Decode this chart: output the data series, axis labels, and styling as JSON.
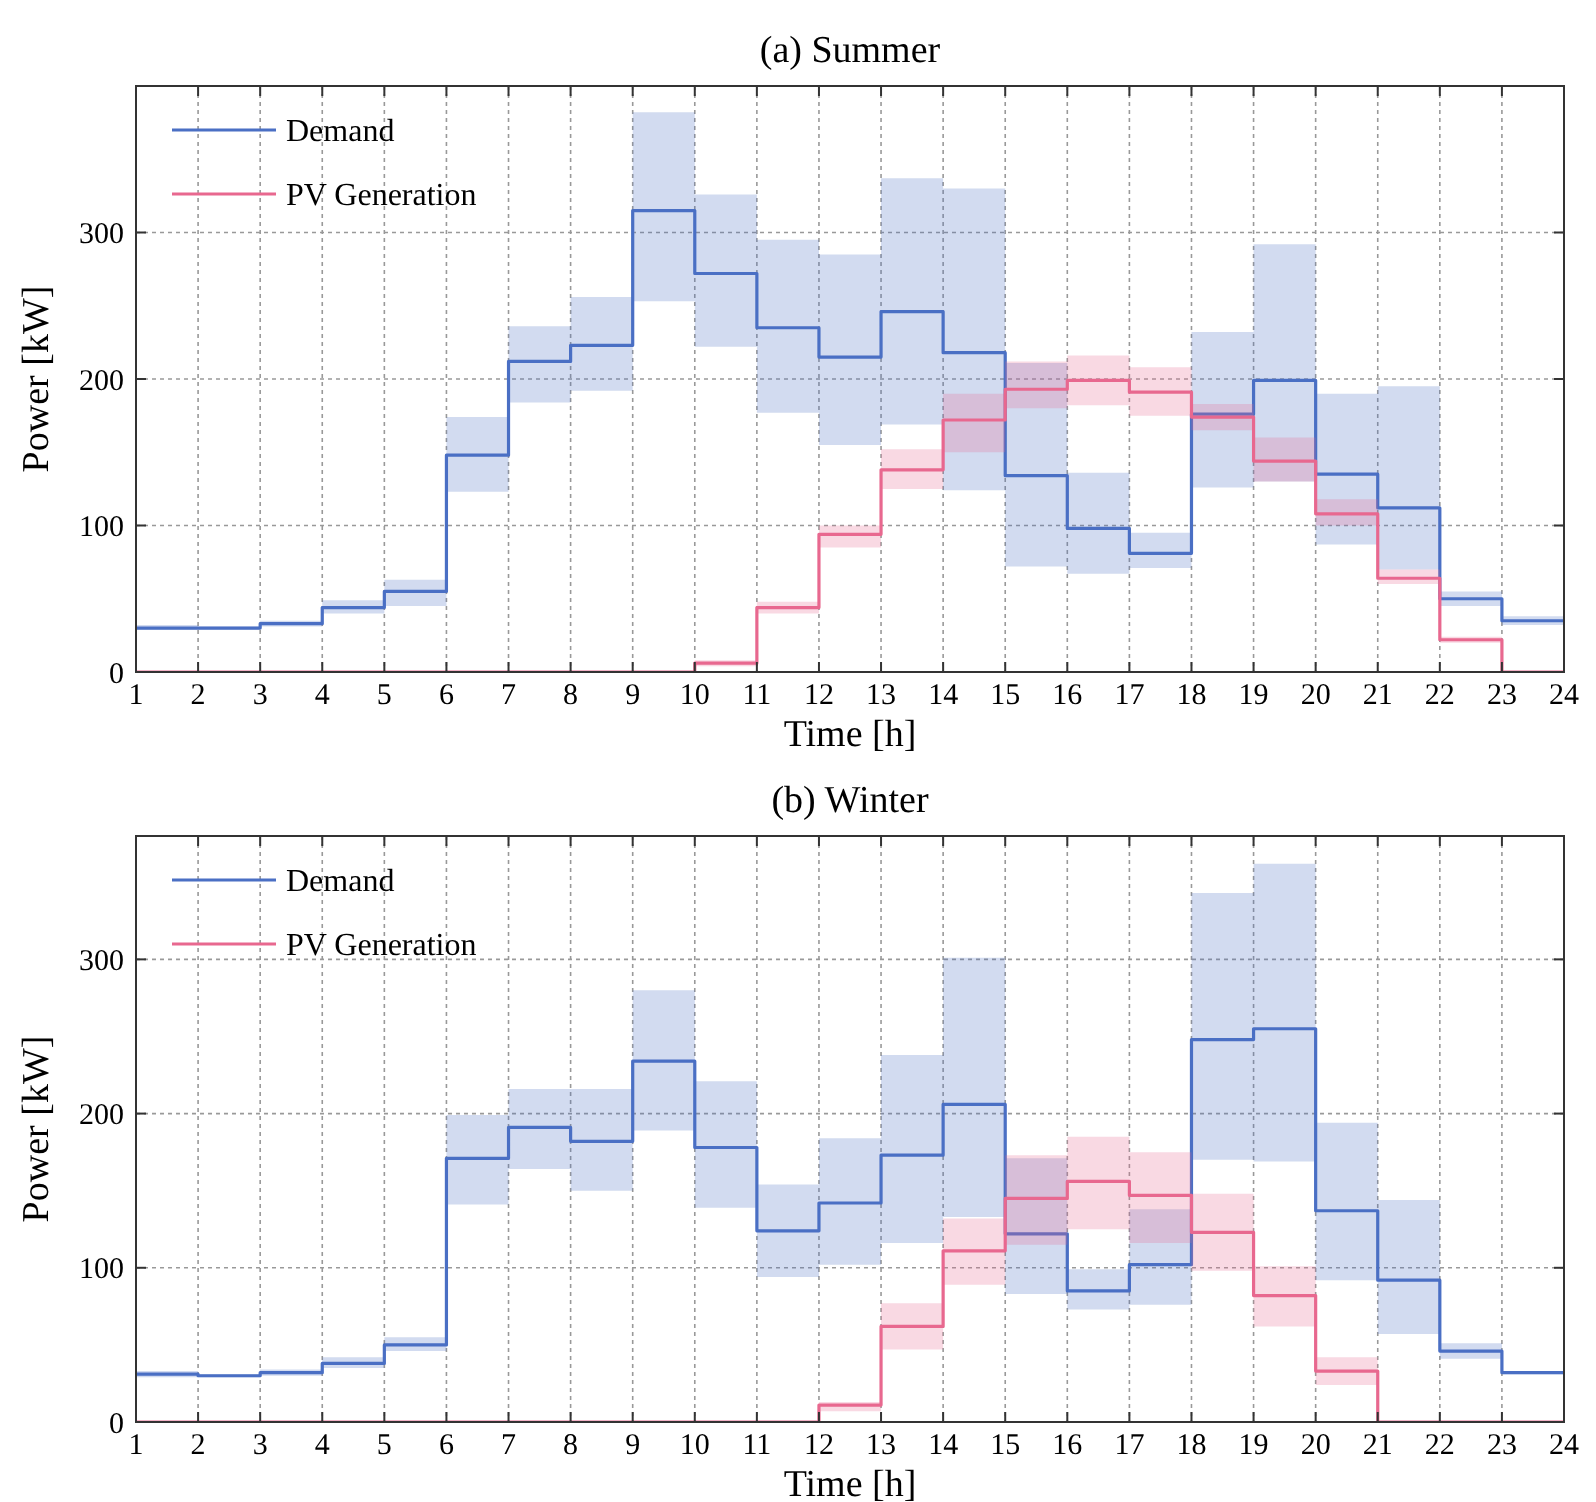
{
  "chart_data": [
    {
      "type": "step",
      "title": "(a) Summer",
      "xlabel": "Time [h]",
      "ylabel": "Power [kW]",
      "x": [
        1,
        2,
        3,
        4,
        5,
        6,
        7,
        8,
        9,
        10,
        11,
        12,
        13,
        14,
        15,
        16,
        17,
        18,
        19,
        20,
        21,
        22,
        23,
        24
      ],
      "xlim": [
        1,
        24
      ],
      "xticks": [
        1,
        2,
        3,
        4,
        5,
        6,
        7,
        8,
        9,
        10,
        11,
        12,
        13,
        14,
        15,
        16,
        17,
        18,
        19,
        20,
        21,
        22,
        23,
        24
      ],
      "ylim": [
        0,
        400
      ],
      "yticks": [
        0,
        100,
        200,
        300
      ],
      "grid": true,
      "legend": "top left",
      "series": [
        {
          "name": "Demand",
          "color": "#4a6fc4",
          "values": [
            30,
            30,
            33,
            44,
            55,
            148,
            212,
            223,
            315,
            272,
            235,
            215,
            246,
            218,
            134,
            98,
            81,
            176,
            199,
            135,
            112,
            50,
            35,
            35
          ],
          "lower": [
            29,
            29,
            31,
            40,
            45,
            123,
            184,
            192,
            253,
            222,
            177,
            155,
            169,
            124,
            72,
            67,
            71,
            126,
            130,
            87,
            70,
            45,
            32,
            32
          ],
          "upper": [
            32,
            31,
            35,
            49,
            63,
            174,
            236,
            256,
            382,
            326,
            295,
            285,
            337,
            330,
            211,
            136,
            95,
            232,
            292,
            190,
            195,
            55,
            38,
            38
          ]
        },
        {
          "name": "PV Generation",
          "color": "#e8688f",
          "values": [
            0,
            0,
            0,
            0,
            0,
            0,
            0,
            0,
            0,
            6,
            44,
            94,
            138,
            172,
            193,
            199,
            191,
            174,
            144,
            108,
            64,
            22,
            0,
            0
          ],
          "lower": [
            0,
            0,
            0,
            0,
            0,
            0,
            0,
            0,
            0,
            4,
            40,
            85,
            125,
            150,
            180,
            182,
            175,
            165,
            130,
            100,
            60,
            20,
            0,
            0
          ],
          "upper": [
            0,
            0,
            0,
            0,
            0,
            0,
            0,
            0,
            0,
            8,
            48,
            100,
            152,
            190,
            212,
            216,
            208,
            183,
            160,
            118,
            70,
            24,
            0,
            0
          ]
        }
      ]
    },
    {
      "type": "step",
      "title": "(b) Winter",
      "xlabel": "Time [h]",
      "ylabel": "Power [kW]",
      "x": [
        1,
        2,
        3,
        4,
        5,
        6,
        7,
        8,
        9,
        10,
        11,
        12,
        13,
        14,
        15,
        16,
        17,
        18,
        19,
        20,
        21,
        22,
        23,
        24
      ],
      "xlim": [
        1,
        24
      ],
      "xticks": [
        1,
        2,
        3,
        4,
        5,
        6,
        7,
        8,
        9,
        10,
        11,
        12,
        13,
        14,
        15,
        16,
        17,
        18,
        19,
        20,
        21,
        22,
        23,
        24
      ],
      "ylim": [
        0,
        380
      ],
      "yticks": [
        0,
        100,
        200,
        300
      ],
      "grid": true,
      "legend": "top left",
      "series": [
        {
          "name": "Demand",
          "color": "#4a6fc4",
          "values": [
            31,
            30,
            32,
            38,
            50,
            171,
            191,
            182,
            234,
            178,
            124,
            142,
            173,
            206,
            122,
            85,
            102,
            248,
            255,
            137,
            92,
            46,
            32,
            32
          ],
          "lower": [
            29,
            29,
            30,
            35,
            46,
            141,
            164,
            150,
            189,
            139,
            94,
            102,
            116,
            133,
            83,
            73,
            76,
            170,
            169,
            92,
            57,
            41,
            31,
            31
          ],
          "upper": [
            33,
            31,
            34,
            42,
            55,
            199,
            216,
            216,
            280,
            221,
            154,
            184,
            238,
            301,
            171,
            99,
            138,
            343,
            362,
            194,
            144,
            51,
            33,
            33
          ]
        },
        {
          "name": "PV Generation",
          "color": "#e8688f",
          "values": [
            0,
            0,
            0,
            0,
            0,
            0,
            0,
            0,
            0,
            0,
            0,
            11,
            62,
            111,
            145,
            156,
            147,
            123,
            82,
            33,
            0,
            0,
            0,
            0
          ],
          "lower": [
            0,
            0,
            0,
            0,
            0,
            0,
            0,
            0,
            0,
            0,
            0,
            7,
            47,
            89,
            115,
            125,
            116,
            98,
            62,
            24,
            0,
            0,
            0,
            0
          ],
          "upper": [
            0,
            0,
            0,
            0,
            0,
            0,
            0,
            0,
            0,
            0,
            0,
            13,
            77,
            132,
            173,
            185,
            175,
            148,
            101,
            42,
            0,
            0,
            0,
            0
          ]
        }
      ]
    }
  ]
}
